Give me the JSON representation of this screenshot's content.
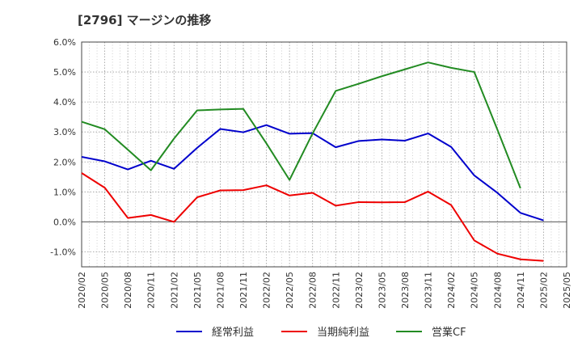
{
  "chart_data": {
    "type": "line",
    "title": "[2796]  マージンの推移",
    "x": [
      "2020/02",
      "2020/05",
      "2020/08",
      "2020/11",
      "2021/02",
      "2021/05",
      "2021/08",
      "2021/11",
      "2022/02",
      "2022/05",
      "2022/08",
      "2022/11",
      "2023/02",
      "2023/05",
      "2023/08",
      "2023/11",
      "2024/02",
      "2024/05",
      "2024/08",
      "2024/11",
      "2025/02",
      "2025/05"
    ],
    "ylim": [
      -1.5,
      6.0
    ],
    "yticks": [
      -1.0,
      0.0,
      1.0,
      2.0,
      3.0,
      4.0,
      5.0,
      6.0
    ],
    "ytick_labels": [
      "-1.0%",
      "0.0%",
      "1.0%",
      "2.0%",
      "3.0%",
      "4.0%",
      "5.0%",
      "6.0%"
    ],
    "grid": true,
    "legend_position": "bottom",
    "series": [
      {
        "name": "経常利益",
        "color": "#0000cc",
        "values": [
          2.17,
          2.02,
          1.75,
          2.04,
          1.77,
          2.47,
          3.1,
          2.99,
          3.23,
          2.94,
          2.96,
          2.49,
          2.7,
          2.75,
          2.71,
          2.95,
          2.5,
          1.55,
          0.97,
          0.3,
          0.05,
          null
        ]
      },
      {
        "name": "当期純利益",
        "color": "#ee0000",
        "values": [
          1.63,
          1.14,
          0.13,
          0.23,
          0.0,
          0.82,
          1.05,
          1.06,
          1.22,
          0.88,
          0.97,
          0.54,
          0.66,
          0.65,
          0.66,
          1.01,
          0.56,
          -0.62,
          -1.06,
          -1.25,
          -1.3,
          null
        ]
      },
      {
        "name": "営業CF",
        "color": "#228b22",
        "values": [
          3.34,
          3.09,
          2.41,
          1.72,
          2.78,
          3.72,
          3.75,
          3.77,
          2.62,
          1.4,
          2.95,
          4.37,
          4.61,
          4.86,
          5.09,
          5.32,
          5.14,
          5.0,
          3.08,
          1.12,
          null,
          null
        ]
      }
    ]
  }
}
